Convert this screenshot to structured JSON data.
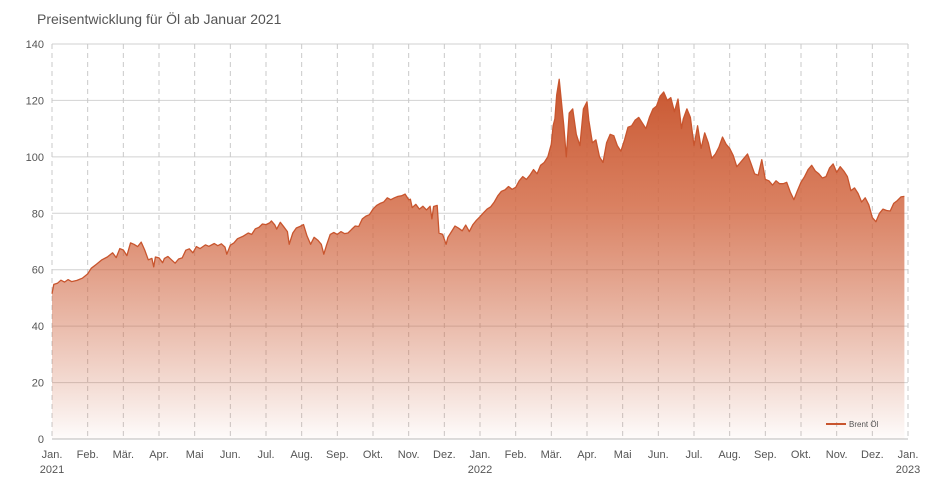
{
  "chart_data": {
    "type": "area",
    "title": "Preisentwicklung für Öl ab Januar 2021",
    "xlabel": "",
    "ylabel": "",
    "ylim": [
      0,
      140
    ],
    "yticks": [
      0,
      20,
      40,
      60,
      80,
      100,
      120,
      140
    ],
    "xlim": [
      0,
      24
    ],
    "xticks": [
      {
        "month": 0,
        "label": "Jan.",
        "sublabel": "2021"
      },
      {
        "month": 1,
        "label": "Feb.",
        "sublabel": ""
      },
      {
        "month": 2,
        "label": "Mär.",
        "sublabel": ""
      },
      {
        "month": 3,
        "label": "Apr.",
        "sublabel": ""
      },
      {
        "month": 4,
        "label": "Mai",
        "sublabel": ""
      },
      {
        "month": 5,
        "label": "Jun.",
        "sublabel": ""
      },
      {
        "month": 6,
        "label": "Jul.",
        "sublabel": ""
      },
      {
        "month": 7,
        "label": "Aug.",
        "sublabel": ""
      },
      {
        "month": 8,
        "label": "Sep.",
        "sublabel": ""
      },
      {
        "month": 9,
        "label": "Okt.",
        "sublabel": ""
      },
      {
        "month": 10,
        "label": "Nov.",
        "sublabel": ""
      },
      {
        "month": 11,
        "label": "Dez.",
        "sublabel": ""
      },
      {
        "month": 12,
        "label": "Jan.",
        "sublabel": "2022"
      },
      {
        "month": 13,
        "label": "Feb.",
        "sublabel": ""
      },
      {
        "month": 14,
        "label": "Mär.",
        "sublabel": ""
      },
      {
        "month": 15,
        "label": "Apr.",
        "sublabel": ""
      },
      {
        "month": 16,
        "label": "Mai",
        "sublabel": ""
      },
      {
        "month": 17,
        "label": "Jun.",
        "sublabel": ""
      },
      {
        "month": 18,
        "label": "Jul.",
        "sublabel": ""
      },
      {
        "month": 19,
        "label": "Aug.",
        "sublabel": ""
      },
      {
        "month": 20,
        "label": "Sep.",
        "sublabel": ""
      },
      {
        "month": 21,
        "label": "Okt.",
        "sublabel": ""
      },
      {
        "month": 22,
        "label": "Nov.",
        "sublabel": ""
      },
      {
        "month": 23,
        "label": "Dez.",
        "sublabel": ""
      },
      {
        "month": 24,
        "label": "Jan.",
        "sublabel": "2023"
      }
    ],
    "series": [
      {
        "name": "Brent Öl",
        "color": "#c8552e",
        "points": [
          [
            0.0,
            51.5
          ],
          [
            0.05,
            54.8
          ],
          [
            0.15,
            55.2
          ],
          [
            0.25,
            56.3
          ],
          [
            0.35,
            55.6
          ],
          [
            0.45,
            56.5
          ],
          [
            0.55,
            55.8
          ],
          [
            0.7,
            56.2
          ],
          [
            0.85,
            57.0
          ],
          [
            1.0,
            58.5
          ],
          [
            1.1,
            60.5
          ],
          [
            1.25,
            62.0
          ],
          [
            1.4,
            63.5
          ],
          [
            1.55,
            64.5
          ],
          [
            1.7,
            66.0
          ],
          [
            1.8,
            64.3
          ],
          [
            1.9,
            67.5
          ],
          [
            2.0,
            67.0
          ],
          [
            2.1,
            65.0
          ],
          [
            2.2,
            69.5
          ],
          [
            2.3,
            69.0
          ],
          [
            2.4,
            68.2
          ],
          [
            2.5,
            69.8
          ],
          [
            2.6,
            67.0
          ],
          [
            2.7,
            63.5
          ],
          [
            2.8,
            64.0
          ],
          [
            2.85,
            61.0
          ],
          [
            2.9,
            64.5
          ],
          [
            3.0,
            64.2
          ],
          [
            3.1,
            62.5
          ],
          [
            3.15,
            64.0
          ],
          [
            3.25,
            64.7
          ],
          [
            3.35,
            63.5
          ],
          [
            3.45,
            62.3
          ],
          [
            3.55,
            63.8
          ],
          [
            3.65,
            64.2
          ],
          [
            3.75,
            66.9
          ],
          [
            3.85,
            67.4
          ],
          [
            3.95,
            66.0
          ],
          [
            4.05,
            68.2
          ],
          [
            4.15,
            67.5
          ],
          [
            4.3,
            68.8
          ],
          [
            4.4,
            68.3
          ],
          [
            4.55,
            69.3
          ],
          [
            4.65,
            68.5
          ],
          [
            4.75,
            69.2
          ],
          [
            4.85,
            68.0
          ],
          [
            4.9,
            65.5
          ],
          [
            5.0,
            68.7
          ],
          [
            5.1,
            69.5
          ],
          [
            5.2,
            71.0
          ],
          [
            5.35,
            71.8
          ],
          [
            5.5,
            73.0
          ],
          [
            5.6,
            72.5
          ],
          [
            5.7,
            74.5
          ],
          [
            5.8,
            75.0
          ],
          [
            5.9,
            76.2
          ],
          [
            6.0,
            76.0
          ],
          [
            6.1,
            76.6
          ],
          [
            6.15,
            77.3
          ],
          [
            6.25,
            75.8
          ],
          [
            6.3,
            74.4
          ],
          [
            6.4,
            76.8
          ],
          [
            6.5,
            75.2
          ],
          [
            6.6,
            73.5
          ],
          [
            6.65,
            69.0
          ],
          [
            6.75,
            73.0
          ],
          [
            6.85,
            74.8
          ],
          [
            6.95,
            75.3
          ],
          [
            7.05,
            76.0
          ],
          [
            7.15,
            72.0
          ],
          [
            7.25,
            69.0
          ],
          [
            7.35,
            71.5
          ],
          [
            7.45,
            70.5
          ],
          [
            7.55,
            69.0
          ],
          [
            7.62,
            65.5
          ],
          [
            7.7,
            68.8
          ],
          [
            7.8,
            72.5
          ],
          [
            7.9,
            73.2
          ],
          [
            8.0,
            72.5
          ],
          [
            8.1,
            73.5
          ],
          [
            8.2,
            72.8
          ],
          [
            8.3,
            73.0
          ],
          [
            8.4,
            74.3
          ],
          [
            8.5,
            75.5
          ],
          [
            8.6,
            75.3
          ],
          [
            8.7,
            78.0
          ],
          [
            8.8,
            79.0
          ],
          [
            8.9,
            79.5
          ],
          [
            9.0,
            81.5
          ],
          [
            9.1,
            82.8
          ],
          [
            9.2,
            83.5
          ],
          [
            9.3,
            84.0
          ],
          [
            9.4,
            85.5
          ],
          [
            9.5,
            84.8
          ],
          [
            9.6,
            85.5
          ],
          [
            9.7,
            86.0
          ],
          [
            9.8,
            86.2
          ],
          [
            9.9,
            86.8
          ],
          [
            10.0,
            84.8
          ],
          [
            10.05,
            85.0
          ],
          [
            10.1,
            82.0
          ],
          [
            10.2,
            83.2
          ],
          [
            10.3,
            81.5
          ],
          [
            10.4,
            82.5
          ],
          [
            10.5,
            81.2
          ],
          [
            10.6,
            82.5
          ],
          [
            10.65,
            78.0
          ],
          [
            10.7,
            82.4
          ],
          [
            10.8,
            82.8
          ],
          [
            10.85,
            73.0
          ],
          [
            10.95,
            72.5
          ],
          [
            11.05,
            69.0
          ],
          [
            11.1,
            71.5
          ],
          [
            11.2,
            73.5
          ],
          [
            11.3,
            75.5
          ],
          [
            11.4,
            74.7
          ],
          [
            11.5,
            73.8
          ],
          [
            11.6,
            75.8
          ],
          [
            11.7,
            73.5
          ],
          [
            11.8,
            76.0
          ],
          [
            11.9,
            77.5
          ],
          [
            12.0,
            78.8
          ],
          [
            12.1,
            80.2
          ],
          [
            12.2,
            81.5
          ],
          [
            12.3,
            82.3
          ],
          [
            12.4,
            84.0
          ],
          [
            12.5,
            86.2
          ],
          [
            12.6,
            87.8
          ],
          [
            12.7,
            88.3
          ],
          [
            12.8,
            89.5
          ],
          [
            12.9,
            88.5
          ],
          [
            13.0,
            89.2
          ],
          [
            13.1,
            91.5
          ],
          [
            13.2,
            93.0
          ],
          [
            13.3,
            92.0
          ],
          [
            13.4,
            93.5
          ],
          [
            13.5,
            95.5
          ],
          [
            13.6,
            94.0
          ],
          [
            13.7,
            97.0
          ],
          [
            13.8,
            98.0
          ],
          [
            13.9,
            100.0
          ],
          [
            14.0,
            104.5
          ],
          [
            14.05,
            111.0
          ],
          [
            14.1,
            113.5
          ],
          [
            14.15,
            122.0
          ],
          [
            14.22,
            127.5
          ],
          [
            14.28,
            120.0
          ],
          [
            14.35,
            111.0
          ],
          [
            14.42,
            100.0
          ],
          [
            14.5,
            115.5
          ],
          [
            14.6,
            117.0
          ],
          [
            14.7,
            108.0
          ],
          [
            14.8,
            104.0
          ],
          [
            14.9,
            117.0
          ],
          [
            15.0,
            119.5
          ],
          [
            15.05,
            113.0
          ],
          [
            15.15,
            105.0
          ],
          [
            15.25,
            106.0
          ],
          [
            15.35,
            100.0
          ],
          [
            15.45,
            98.0
          ],
          [
            15.55,
            105.0
          ],
          [
            15.65,
            108.0
          ],
          [
            15.75,
            107.5
          ],
          [
            15.85,
            104.0
          ],
          [
            15.95,
            102.0
          ],
          [
            16.05,
            106.0
          ],
          [
            16.15,
            110.5
          ],
          [
            16.25,
            111.0
          ],
          [
            16.35,
            113.0
          ],
          [
            16.45,
            114.0
          ],
          [
            16.55,
            112.0
          ],
          [
            16.65,
            110.0
          ],
          [
            16.75,
            114.0
          ],
          [
            16.85,
            117.0
          ],
          [
            16.95,
            118.0
          ],
          [
            17.05,
            121.5
          ],
          [
            17.15,
            123.0
          ],
          [
            17.25,
            120.0
          ],
          [
            17.35,
            121.0
          ],
          [
            17.45,
            116.0
          ],
          [
            17.55,
            120.5
          ],
          [
            17.65,
            110.0
          ],
          [
            17.7,
            113.5
          ],
          [
            17.8,
            117.0
          ],
          [
            17.9,
            114.0
          ],
          [
            18.0,
            104.0
          ],
          [
            18.1,
            111.0
          ],
          [
            18.2,
            103.0
          ],
          [
            18.3,
            108.5
          ],
          [
            18.4,
            105.0
          ],
          [
            18.5,
            99.5
          ],
          [
            18.6,
            101.0
          ],
          [
            18.7,
            103.5
          ],
          [
            18.8,
            107.0
          ],
          [
            18.9,
            104.5
          ],
          [
            19.0,
            103.0
          ],
          [
            19.1,
            100.5
          ],
          [
            19.2,
            96.5
          ],
          [
            19.3,
            98.0
          ],
          [
            19.4,
            99.5
          ],
          [
            19.5,
            101.0
          ],
          [
            19.6,
            97.5
          ],
          [
            19.7,
            94.0
          ],
          [
            19.8,
            93.5
          ],
          [
            19.9,
            99.0
          ],
          [
            20.0,
            92.0
          ],
          [
            20.1,
            91.5
          ],
          [
            20.2,
            90.0
          ],
          [
            20.3,
            91.5
          ],
          [
            20.4,
            90.5
          ],
          [
            20.5,
            90.5
          ],
          [
            20.6,
            91.0
          ],
          [
            20.7,
            87.5
          ],
          [
            20.8,
            84.8
          ],
          [
            20.9,
            88.0
          ],
          [
            21.0,
            91.0
          ],
          [
            21.1,
            93.0
          ],
          [
            21.2,
            95.5
          ],
          [
            21.3,
            97.0
          ],
          [
            21.4,
            95.0
          ],
          [
            21.5,
            94.0
          ],
          [
            21.6,
            92.5
          ],
          [
            21.7,
            93.0
          ],
          [
            21.8,
            96.0
          ],
          [
            21.9,
            97.5
          ],
          [
            22.0,
            94.5
          ],
          [
            22.1,
            96.5
          ],
          [
            22.2,
            95.0
          ],
          [
            22.3,
            93.0
          ],
          [
            22.4,
            88.0
          ],
          [
            22.5,
            89.0
          ],
          [
            22.6,
            87.0
          ],
          [
            22.7,
            84.0
          ],
          [
            22.8,
            85.5
          ],
          [
            22.9,
            83.0
          ],
          [
            23.0,
            78.5
          ],
          [
            23.1,
            77.0
          ],
          [
            23.2,
            80.0
          ],
          [
            23.3,
            81.5
          ],
          [
            23.4,
            81.0
          ],
          [
            23.5,
            80.8
          ],
          [
            23.6,
            83.5
          ],
          [
            23.7,
            84.5
          ],
          [
            23.8,
            85.8
          ],
          [
            23.9,
            86.0
          ]
        ]
      }
    ],
    "grid": true,
    "legend": {
      "position": "bottom-right",
      "entries": [
        "Brent Öl"
      ]
    }
  }
}
